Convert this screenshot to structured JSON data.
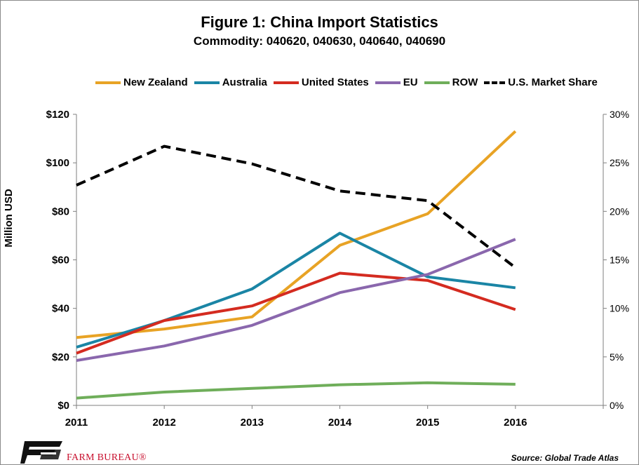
{
  "chart_data": {
    "type": "line",
    "title": "Figure 1: China Import Statistics",
    "subtitle": "Commodity: 040620, 040630, 040640, 040690",
    "x": [
      "2011",
      "2012",
      "2013",
      "2014",
      "2015",
      "2016"
    ],
    "ylabel": "Million USD",
    "ylim": [
      0,
      120
    ],
    "y_ticks": [
      "$0",
      "$20",
      "$40",
      "$60",
      "$80",
      "$100",
      "$120"
    ],
    "y2lim": [
      0,
      30
    ],
    "y2_ticks": [
      "0%",
      "5%",
      "10%",
      "15%",
      "20%",
      "25%",
      "30%"
    ],
    "grid": false,
    "legend_position": "top",
    "series": [
      {
        "name": "New Zealand",
        "color": "#e8a325",
        "axis": "left",
        "values": [
          28,
          31.5,
          36.5,
          66,
          79,
          113
        ]
      },
      {
        "name": "Australia",
        "color": "#1a85a5",
        "axis": "left",
        "values": [
          24,
          35,
          48,
          71,
          53,
          48.5
        ]
      },
      {
        "name": "United States",
        "color": "#d42b20",
        "axis": "left",
        "values": [
          21.5,
          35,
          41,
          54.5,
          51.5,
          39.5
        ]
      },
      {
        "name": "EU",
        "color": "#8a67ad",
        "axis": "left",
        "values": [
          18.5,
          24.5,
          33,
          46.5,
          54,
          68.5
        ]
      },
      {
        "name": "ROW",
        "color": "#6fae5a",
        "axis": "left",
        "values": [
          3,
          5.5,
          7,
          8.5,
          9.3,
          8.7
        ]
      },
      {
        "name": "U.S. Market Share",
        "color": "#000000",
        "axis": "right",
        "dashed": true,
        "values": [
          22.7,
          26.7,
          24.9,
          22.1,
          21.1,
          14.2
        ]
      }
    ]
  },
  "footer": {
    "logo_text": "FARM BUREAU®",
    "source": "Source: Global Trade Atlas"
  }
}
